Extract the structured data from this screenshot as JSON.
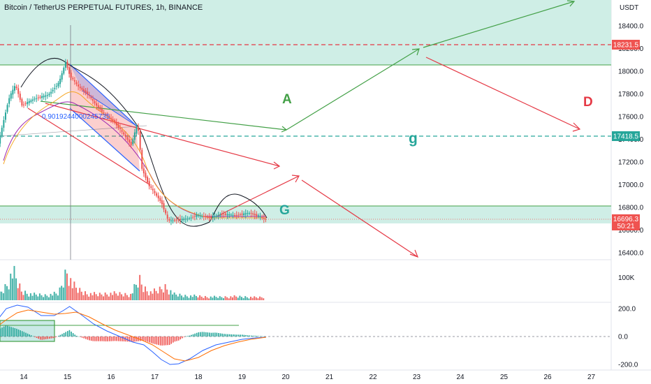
{
  "header": {
    "title": "Bitcoin / TetherUS PERPETUAL FUTURES, 1h, BINANCE",
    "currency": "USDT"
  },
  "colors": {
    "up": "#26a69a",
    "down": "#ef5350",
    "zone_fill": "#cfeee6",
    "green_line": "#43a047",
    "red_line": "#e53945",
    "channel_blue": "#2962ff",
    "macd_line": "#2962ff",
    "signal_line": "#ff6d00",
    "ema_orange": "#f5a623",
    "ema_purple": "#9c27b0"
  },
  "labels": {
    "fib": "0.9019244000245735",
    "A": "A",
    "g": "g",
    "G": "G",
    "D": "D"
  },
  "price_labels": {
    "resistance": "18231.5",
    "mid": "17418.5",
    "last": "16696.3",
    "countdown": "50:21"
  },
  "chart_data": {
    "type": "candlestick",
    "title": "Bitcoin / TetherUS PERPETUAL FUTURES, 1h, BINANCE",
    "x_ticks": [
      "14",
      "15",
      "16",
      "17",
      "18",
      "19",
      "20",
      "21",
      "22",
      "23",
      "24",
      "25",
      "26",
      "27"
    ],
    "price_axis": {
      "ticks": [
        "18400.0",
        "18200.0",
        "18000.0",
        "17800.0",
        "17600.0",
        "17400.0",
        "17200.0",
        "17000.0",
        "16800.0",
        "16600.0",
        "16400.0"
      ],
      "range": [
        16320,
        18600
      ]
    },
    "volume_axis": {
      "ticks": [
        "100K"
      ]
    },
    "macd_axis": {
      "ticks": [
        "200.0",
        "0.0",
        "-200.0"
      ]
    },
    "price_path": [
      [
        13.0,
        17230
      ],
      [
        13.4,
        17270
      ],
      [
        13.7,
        17760
      ],
      [
        13.85,
        17880
      ],
      [
        14.0,
        17700
      ],
      [
        14.3,
        17760
      ],
      [
        14.6,
        17790
      ],
      [
        14.85,
        17900
      ],
      [
        15.0,
        18080
      ],
      [
        15.1,
        17960
      ],
      [
        15.3,
        17860
      ],
      [
        15.5,
        17800
      ],
      [
        15.7,
        17700
      ],
      [
        15.9,
        17620
      ],
      [
        16.1,
        17560
      ],
      [
        16.3,
        17460
      ],
      [
        16.5,
        17350
      ],
      [
        16.65,
        17540
      ],
      [
        16.75,
        17140
      ],
      [
        16.9,
        17000
      ],
      [
        17.05,
        16920
      ],
      [
        17.2,
        16840
      ],
      [
        17.35,
        16680
      ],
      [
        17.55,
        16690
      ],
      [
        17.8,
        16700
      ],
      [
        18.0,
        16730
      ],
      [
        18.3,
        16710
      ],
      [
        18.6,
        16740
      ],
      [
        18.9,
        16730
      ],
      [
        19.2,
        16750
      ],
      [
        19.45,
        16720
      ],
      [
        19.55,
        16696
      ]
    ],
    "volume": [
      [
        13.2,
        18
      ],
      [
        13.45,
        30
      ],
      [
        13.6,
        65
      ],
      [
        13.75,
        125
      ],
      [
        13.95,
        40
      ],
      [
        14.2,
        25
      ],
      [
        14.5,
        22
      ],
      [
        14.8,
        30
      ],
      [
        15.0,
        140
      ],
      [
        15.1,
        70
      ],
      [
        15.25,
        45
      ],
      [
        15.45,
        30
      ],
      [
        15.7,
        25
      ],
      [
        15.95,
        30
      ],
      [
        16.2,
        28
      ],
      [
        16.45,
        25
      ],
      [
        16.65,
        90
      ],
      [
        16.75,
        55
      ],
      [
        16.9,
        35
      ],
      [
        17.05,
        40
      ],
      [
        17.25,
        60
      ],
      [
        17.45,
        25
      ],
      [
        17.7,
        20
      ],
      [
        17.95,
        18
      ],
      [
        18.2,
        15
      ],
      [
        18.5,
        14
      ],
      [
        18.8,
        16
      ],
      [
        19.1,
        15
      ],
      [
        19.35,
        12
      ],
      [
        19.5,
        14
      ]
    ],
    "macd_line": [
      [
        13.0,
        40
      ],
      [
        13.3,
        80
      ],
      [
        13.6,
        200
      ],
      [
        13.85,
        225
      ],
      [
        14.1,
        210
      ],
      [
        14.4,
        150
      ],
      [
        14.7,
        150
      ],
      [
        14.9,
        185
      ],
      [
        15.05,
        215
      ],
      [
        15.3,
        160
      ],
      [
        15.6,
        90
      ],
      [
        15.9,
        40
      ],
      [
        16.2,
        0
      ],
      [
        16.5,
        -40
      ],
      [
        16.75,
        -60
      ],
      [
        16.95,
        -110
      ],
      [
        17.15,
        -165
      ],
      [
        17.35,
        -200
      ],
      [
        17.55,
        -195
      ],
      [
        17.8,
        -160
      ],
      [
        18.1,
        -100
      ],
      [
        18.4,
        -60
      ],
      [
        18.7,
        -40
      ],
      [
        19.0,
        -20
      ],
      [
        19.3,
        -10
      ],
      [
        19.55,
        -5
      ]
    ],
    "signal_line": [
      [
        13.0,
        20
      ],
      [
        13.3,
        50
      ],
      [
        13.6,
        120
      ],
      [
        13.85,
        170
      ],
      [
        14.1,
        190
      ],
      [
        14.4,
        175
      ],
      [
        14.7,
        160
      ],
      [
        14.95,
        165
      ],
      [
        15.2,
        175
      ],
      [
        15.5,
        140
      ],
      [
        15.8,
        90
      ],
      [
        16.1,
        45
      ],
      [
        16.4,
        10
      ],
      [
        16.7,
        -25
      ],
      [
        16.95,
        -60
      ],
      [
        17.2,
        -110
      ],
      [
        17.45,
        -160
      ],
      [
        17.7,
        -175
      ],
      [
        18.0,
        -150
      ],
      [
        18.3,
        -100
      ],
      [
        18.6,
        -65
      ],
      [
        18.9,
        -40
      ],
      [
        19.2,
        -20
      ],
      [
        19.55,
        -5
      ]
    ],
    "annotations": [
      "0.9019244000245735",
      "A",
      "g",
      "G",
      "D"
    ]
  }
}
